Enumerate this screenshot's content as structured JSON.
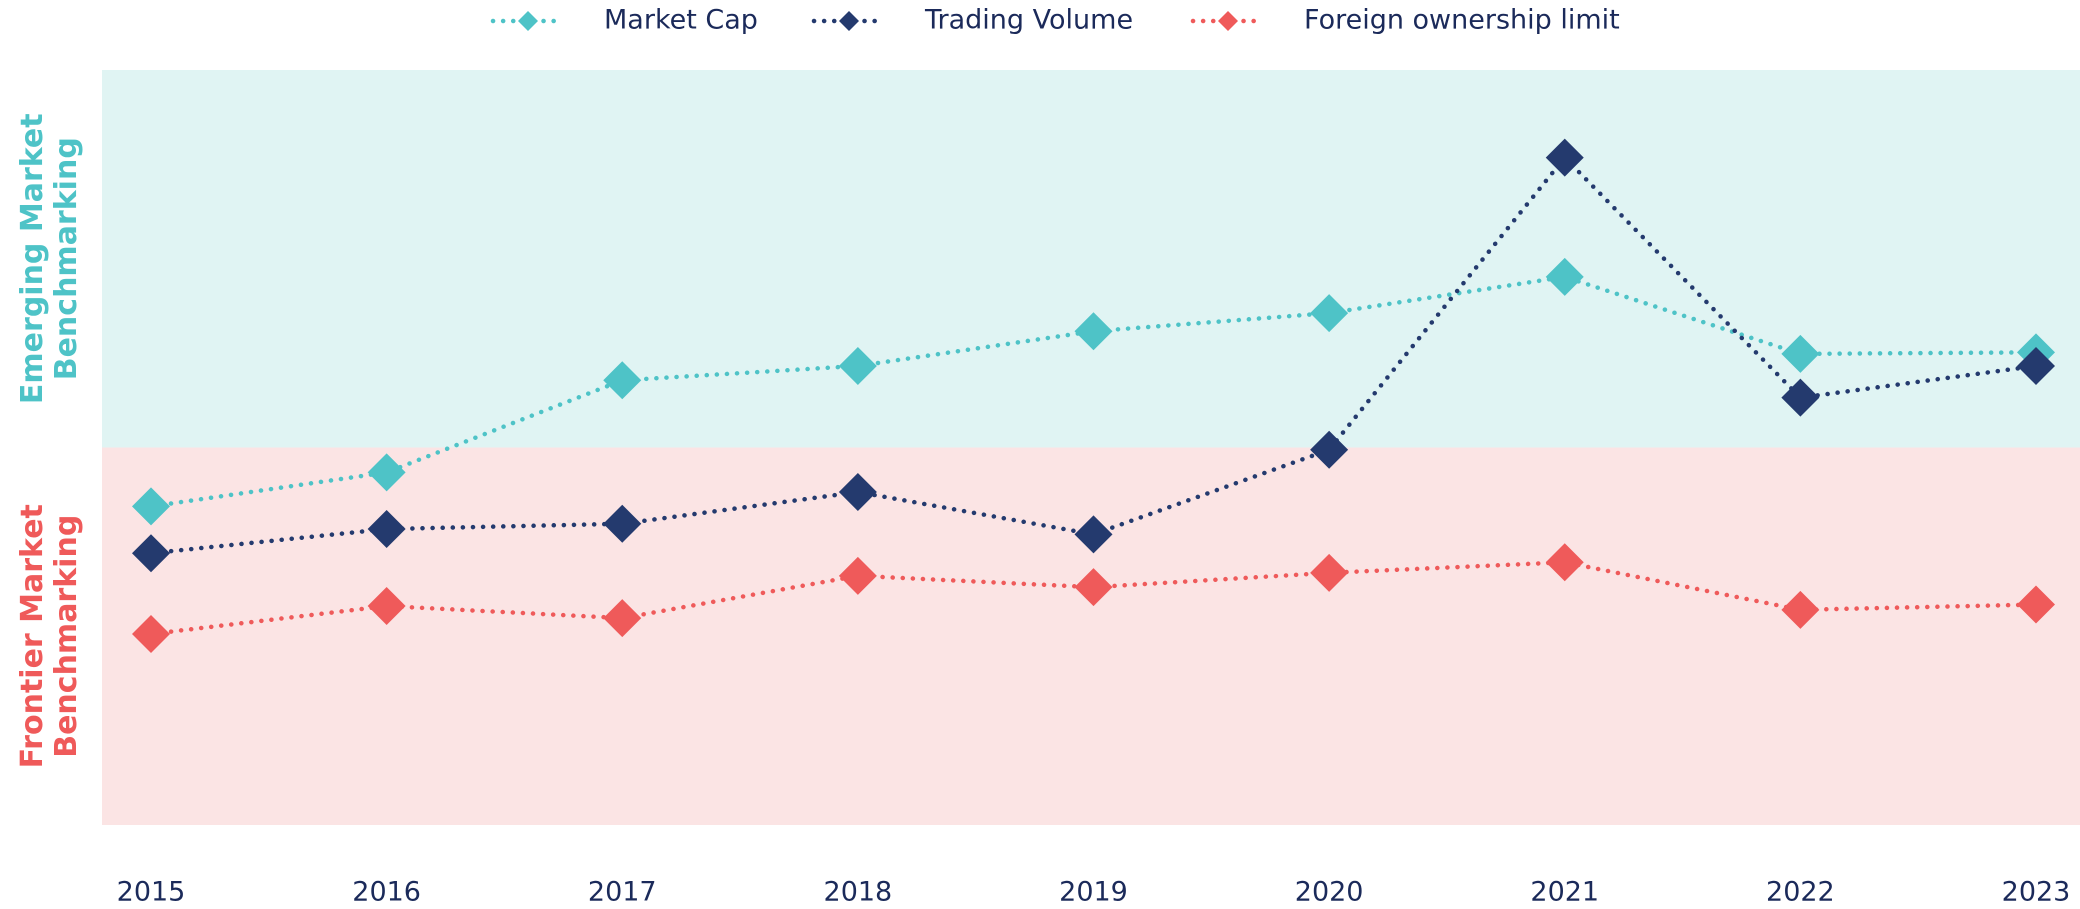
{
  "chart_data": {
    "type": "line",
    "categories": [
      "2015",
      "2016",
      "2017",
      "2018",
      "2019",
      "2020",
      "2021",
      "2022",
      "2023"
    ],
    "series": [
      {
        "name": "Market Cap",
        "color": "#4ec3c7",
        "values": [
          42.2,
          46.7,
          58.9,
          60.8,
          65.4,
          67.8,
          72.6,
          62.4,
          62.6
        ]
      },
      {
        "name": "Trading Volume",
        "color": "#243a6e",
        "values": [
          36.0,
          39.2,
          39.9,
          44.1,
          38.5,
          49.7,
          88.4,
          56.6,
          60.8
        ]
      },
      {
        "name": "Foreign ownership limit",
        "color": "#ef5a5a",
        "values": [
          25.3,
          29.0,
          27.4,
          33.0,
          31.5,
          33.4,
          34.8,
          28.5,
          29.2
        ]
      }
    ],
    "ylim": [
      0,
      100
    ],
    "bands": [
      {
        "label": [
          "Emerging Market",
          "Benchmarking"
        ],
        "from": 50,
        "to": 100,
        "color": "#e0f4f3",
        "label_color": "#4ec3c7"
      },
      {
        "label": [
          "Frontier Market",
          "Benchmarking"
        ],
        "from": 0,
        "to": 50,
        "color": "#fbe4e4",
        "label_color": "#ef5a5a"
      }
    ],
    "legend": "top"
  }
}
